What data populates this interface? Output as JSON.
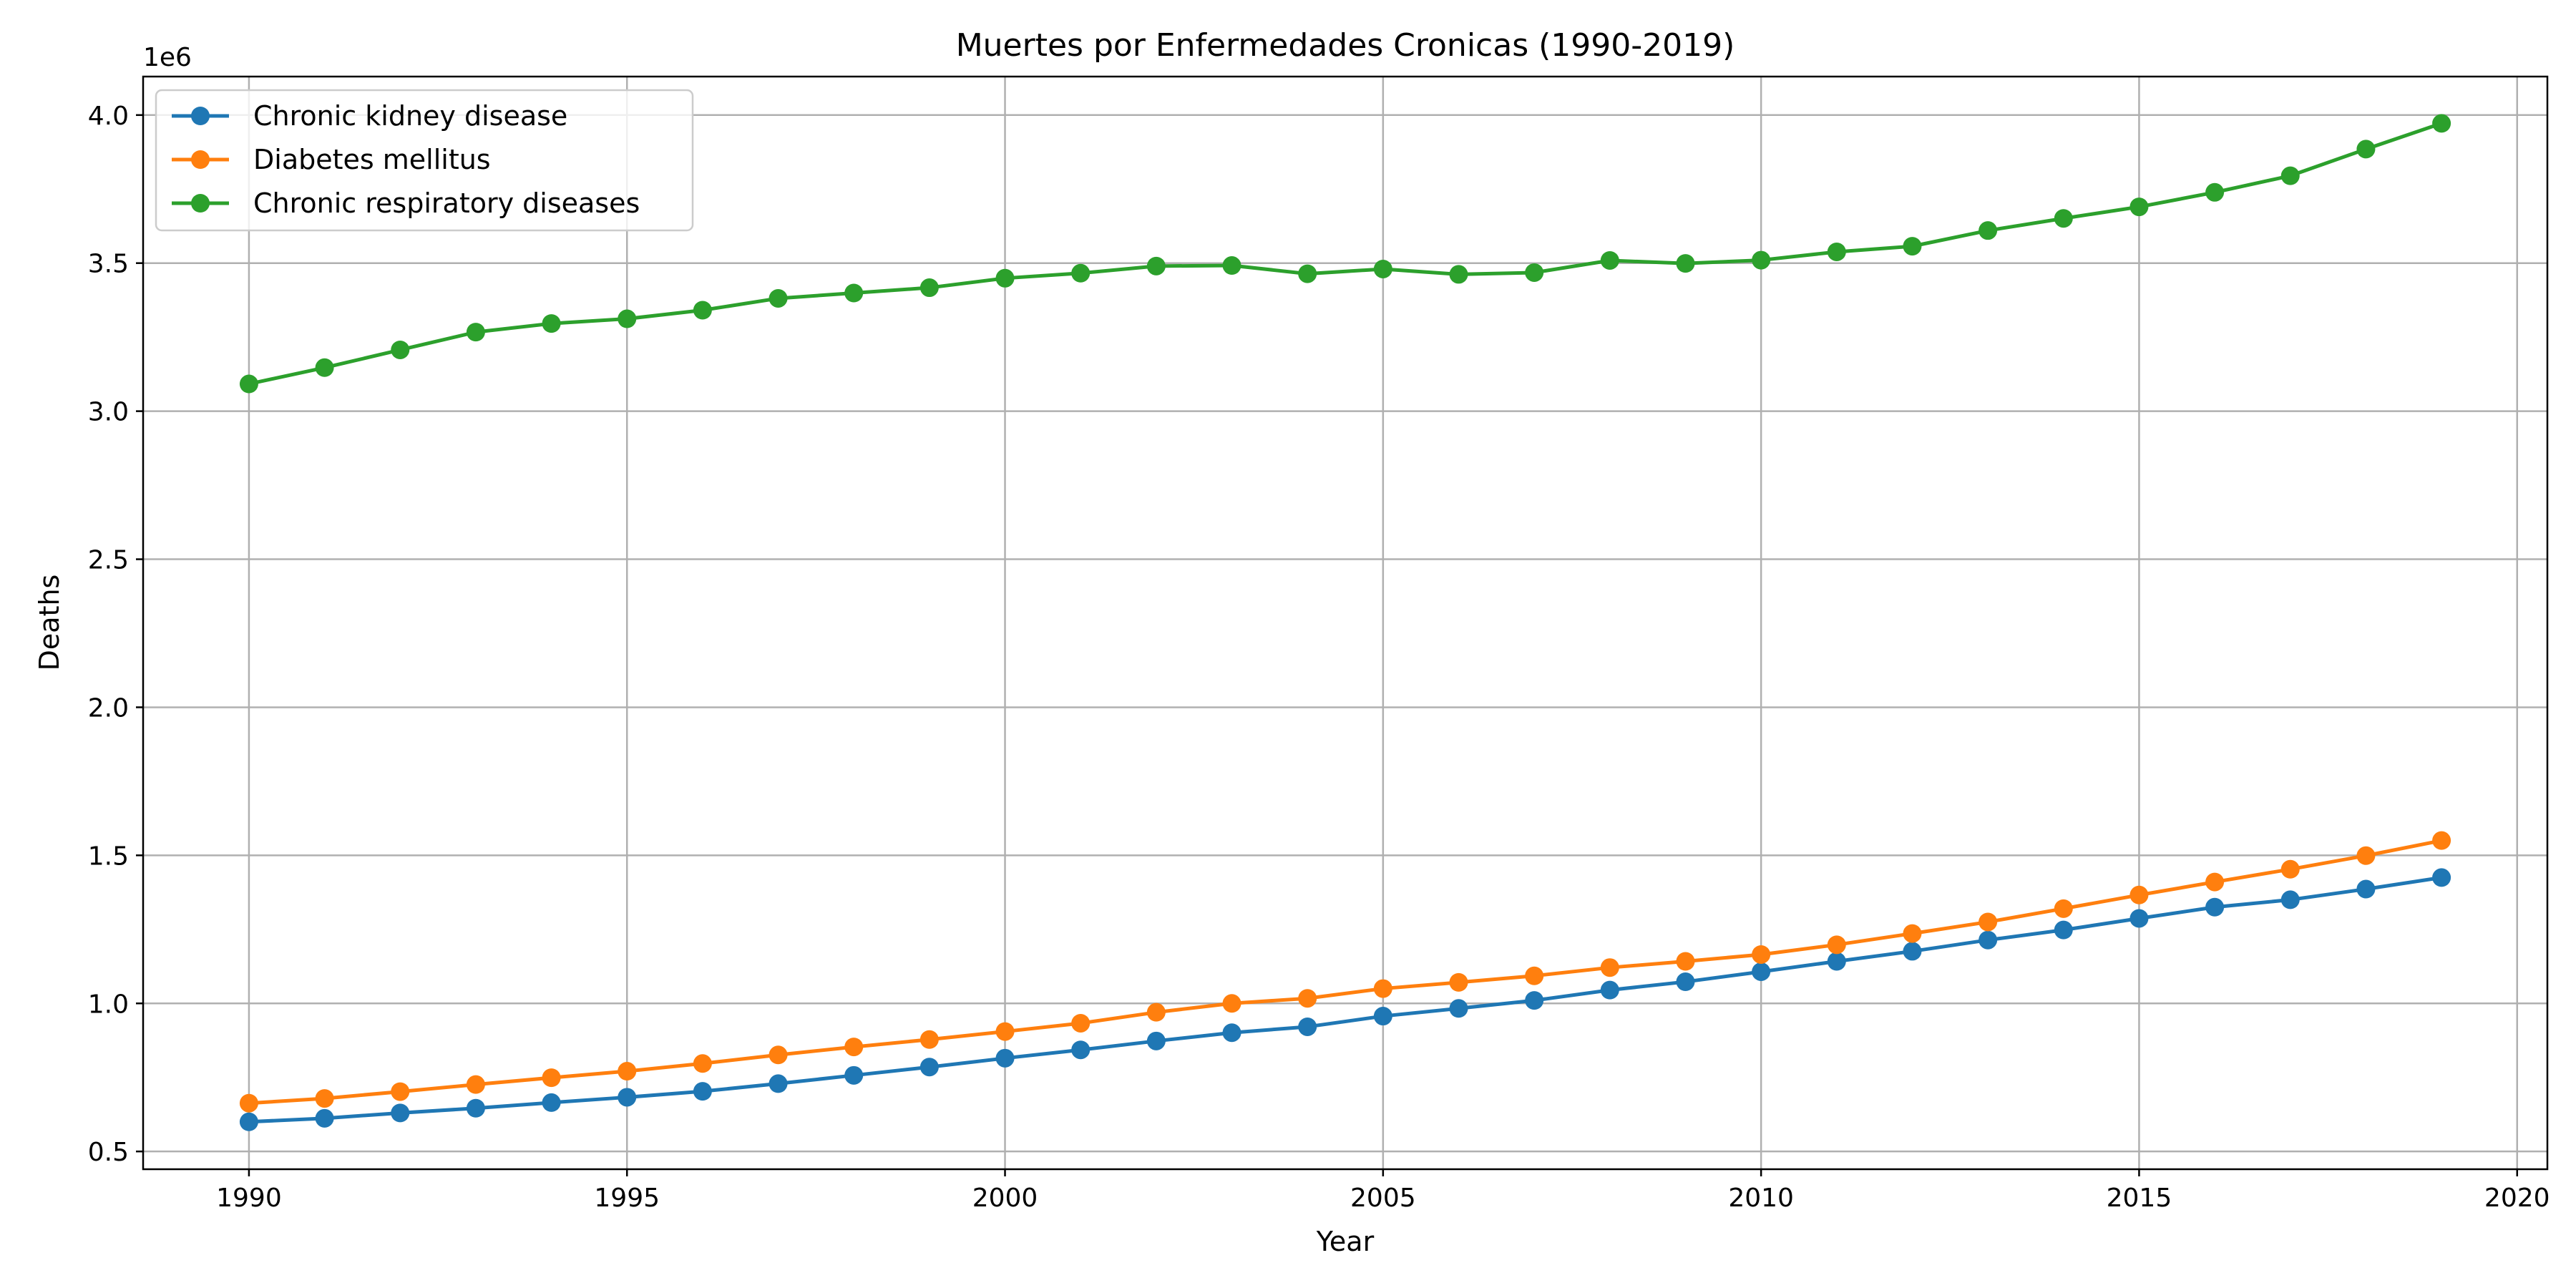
{
  "chart_data": {
    "type": "line",
    "title": "Muertes por Enfermedades Cronicas (1990-2019)",
    "xlabel": "Year",
    "ylabel": "Deaths",
    "y_offset_label": "1e6",
    "xlim": [
      1988.6,
      2020.4
    ],
    "ylim": [
      440000,
      4130000
    ],
    "xticks": [
      1990,
      1995,
      2000,
      2005,
      2010,
      2015,
      2020
    ],
    "xtick_labels": [
      "1990",
      "1995",
      "2000",
      "2005",
      "2010",
      "2015",
      "2020"
    ],
    "yticks": [
      500000,
      1000000,
      1500000,
      2000000,
      2500000,
      3000000,
      3500000,
      4000000
    ],
    "ytick_labels": [
      "0.5",
      "1.0",
      "1.5",
      "2.0",
      "2.5",
      "3.0",
      "3.5",
      "4.0"
    ],
    "grid": true,
    "legend_position": "upper left",
    "x": [
      1990,
      1991,
      1992,
      1993,
      1994,
      1995,
      1996,
      1997,
      1998,
      1999,
      2000,
      2001,
      2002,
      2003,
      2004,
      2005,
      2006,
      2007,
      2008,
      2009,
      2010,
      2011,
      2012,
      2013,
      2014,
      2015,
      2016,
      2017,
      2018,
      2019
    ],
    "series": [
      {
        "name": "Chronic kidney disease",
        "color": "#1f77b4",
        "marker": "circle",
        "values": [
          600000,
          612000,
          630000,
          646000,
          665000,
          683000,
          703000,
          729000,
          757000,
          785000,
          815000,
          843000,
          873000,
          901000,
          921000,
          957000,
          983000,
          1010000,
          1045000,
          1073000,
          1107000,
          1142000,
          1176000,
          1214000,
          1248000,
          1287000,
          1325000,
          1350000,
          1386000,
          1425000
        ]
      },
      {
        "name": "Diabetes mellitus",
        "color": "#ff7f0e",
        "marker": "circle",
        "values": [
          663000,
          679000,
          702000,
          726000,
          749000,
          771000,
          797000,
          826000,
          853000,
          878000,
          905000,
          933000,
          970000,
          1000000,
          1017000,
          1050000,
          1071000,
          1093000,
          1121000,
          1142000,
          1165000,
          1198000,
          1236000,
          1275000,
          1320000,
          1366000,
          1410000,
          1453000,
          1499000,
          1550000
        ]
      },
      {
        "name": "Chronic respiratory diseases",
        "color": "#2ca02c",
        "marker": "circle",
        "values": [
          3092000,
          3147000,
          3207000,
          3267000,
          3296000,
          3312000,
          3341000,
          3381000,
          3399000,
          3417000,
          3449000,
          3466000,
          3490000,
          3492000,
          3464000,
          3480000,
          3462000,
          3468000,
          3509000,
          3499000,
          3510000,
          3538000,
          3557000,
          3610000,
          3651000,
          3690000,
          3739000,
          3795000,
          3885000,
          3972000
        ]
      }
    ]
  }
}
